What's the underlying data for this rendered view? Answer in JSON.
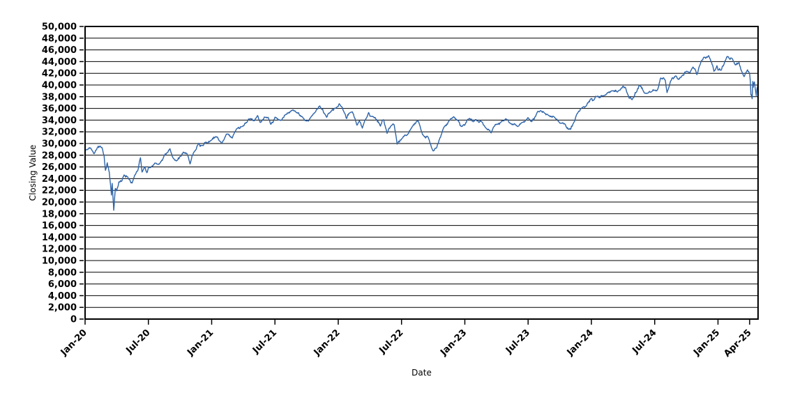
{
  "page": {
    "background": "#ffffff"
  },
  "chart_data": {
    "type": "line",
    "title": "",
    "xlabel": "Date",
    "ylabel": "Closing Value",
    "ylim": [
      0,
      50000
    ],
    "ytick_step": 2000,
    "grid": "horizontal-only",
    "legend": "none",
    "line_color": "#2d63a8",
    "x_unit": "months since Jan-20",
    "x_range": [
      0,
      63.8
    ],
    "xticks": [
      {
        "t": 0,
        "label": "Jan-20"
      },
      {
        "t": 6,
        "label": "Jul-20"
      },
      {
        "t": 12,
        "label": "Jan-21"
      },
      {
        "t": 18,
        "label": "Jul-21"
      },
      {
        "t": 24,
        "label": "Jan-22"
      },
      {
        "t": 30,
        "label": "Jul-22"
      },
      {
        "t": 36,
        "label": "Jan-23"
      },
      {
        "t": 42,
        "label": "Jul-23"
      },
      {
        "t": 48,
        "label": "Jan-24"
      },
      {
        "t": 54,
        "label": "Jul-24"
      },
      {
        "t": 60,
        "label": "Jan-25"
      },
      {
        "t": 63,
        "label": "Apr-25"
      }
    ],
    "series": [
      {
        "name": "Closing Value",
        "points": [
          [
            0,
            28869
          ],
          [
            0.4,
            29297
          ],
          [
            0.85,
            28256
          ],
          [
            1.15,
            29276
          ],
          [
            1.4,
            29551
          ],
          [
            1.62,
            29219
          ],
          [
            1.8,
            27961
          ],
          [
            1.93,
            25409
          ],
          [
            2.1,
            26703
          ],
          [
            2.3,
            25018
          ],
          [
            2.5,
            21200
          ],
          [
            2.57,
            23185
          ],
          [
            2.72,
            18592
          ],
          [
            2.8,
            20705
          ],
          [
            2.87,
            22327
          ],
          [
            3.0,
            21917
          ],
          [
            3.2,
            23434
          ],
          [
            3.45,
            23504
          ],
          [
            3.7,
            24634
          ],
          [
            4.0,
            24346
          ],
          [
            4.25,
            23765
          ],
          [
            4.45,
            23248
          ],
          [
            4.7,
            24576
          ],
          [
            5.0,
            25383
          ],
          [
            5.25,
            27572
          ],
          [
            5.4,
            25128
          ],
          [
            5.63,
            26025
          ],
          [
            5.85,
            25016
          ],
          [
            6.0,
            25813
          ],
          [
            6.3,
            26067
          ],
          [
            6.65,
            26652
          ],
          [
            7.0,
            26428
          ],
          [
            7.5,
            27931
          ],
          [
            8.05,
            29101
          ],
          [
            8.35,
            27501
          ],
          [
            8.75,
            27148
          ],
          [
            9.0,
            27782
          ],
          [
            9.35,
            28514
          ],
          [
            9.65,
            28308
          ],
          [
            9.95,
            26502
          ],
          [
            10.25,
            28309
          ],
          [
            10.78,
            30046
          ],
          [
            11.0,
            29639
          ],
          [
            11.4,
            30199
          ],
          [
            12.0,
            30606
          ],
          [
            12.4,
            31188
          ],
          [
            12.95,
            29983
          ],
          [
            13.4,
            31613
          ],
          [
            13.95,
            30932
          ],
          [
            14.35,
            32485
          ],
          [
            15.0,
            32982
          ],
          [
            15.5,
            34201
          ],
          [
            16.0,
            33875
          ],
          [
            16.35,
            34778
          ],
          [
            16.6,
            33587
          ],
          [
            17.0,
            34529
          ],
          [
            17.35,
            34480
          ],
          [
            17.6,
            33290
          ],
          [
            18.0,
            34503
          ],
          [
            18.6,
            33962
          ],
          [
            19.0,
            34935
          ],
          [
            19.55,
            35626
          ],
          [
            20.0,
            35361
          ],
          [
            20.55,
            34578
          ],
          [
            21.0,
            33844
          ],
          [
            21.35,
            34326
          ],
          [
            21.95,
            35820
          ],
          [
            22.25,
            36432
          ],
          [
            22.9,
            34484
          ],
          [
            23.25,
            35365
          ],
          [
            24.0,
            36338
          ],
          [
            24.1,
            36800
          ],
          [
            24.55,
            35369
          ],
          [
            24.8,
            34265
          ],
          [
            25.0,
            35132
          ],
          [
            25.35,
            35405
          ],
          [
            25.78,
            33131
          ],
          [
            26.0,
            33893
          ],
          [
            26.28,
            32632
          ],
          [
            26.88,
            35294
          ],
          [
            27.0,
            34678
          ],
          [
            27.5,
            34451
          ],
          [
            28.0,
            32977
          ],
          [
            28.3,
            34049
          ],
          [
            28.63,
            31730
          ],
          [
            29.0,
            32990
          ],
          [
            29.3,
            33213
          ],
          [
            29.58,
            29889
          ],
          [
            30.0,
            30775
          ],
          [
            30.5,
            31384
          ],
          [
            31.0,
            32845
          ],
          [
            31.55,
            33980
          ],
          [
            32.0,
            31510
          ],
          [
            32.5,
            31145
          ],
          [
            33.0,
            28726
          ],
          [
            33.3,
            29203
          ],
          [
            33.55,
            30524
          ],
          [
            34.0,
            32733
          ],
          [
            34.45,
            33748
          ],
          [
            34.95,
            34590
          ],
          [
            35.3,
            34005
          ],
          [
            35.65,
            32920
          ],
          [
            36.0,
            33147
          ],
          [
            36.45,
            34303
          ],
          [
            36.8,
            33717
          ],
          [
            37.0,
            34086
          ],
          [
            37.6,
            33697
          ],
          [
            38.0,
            32657
          ],
          [
            38.5,
            31819
          ],
          [
            38.75,
            32859
          ],
          [
            39.0,
            33274
          ],
          [
            39.5,
            33830
          ],
          [
            40.0,
            34098
          ],
          [
            40.35,
            33414
          ],
          [
            41.0,
            32908
          ],
          [
            41.4,
            33573
          ],
          [
            42.0,
            34408
          ],
          [
            42.35,
            33735
          ],
          [
            42.9,
            35459
          ],
          [
            43.2,
            35630
          ],
          [
            43.55,
            35215
          ],
          [
            44.0,
            34722
          ],
          [
            44.5,
            34475
          ],
          [
            45.0,
            33508
          ],
          [
            45.45,
            33415
          ],
          [
            45.88,
            32417
          ],
          [
            46.2,
            33053
          ],
          [
            46.6,
            34947
          ],
          [
            47.0,
            35951
          ],
          [
            47.5,
            36404
          ],
          [
            48.0,
            37690
          ],
          [
            48.25,
            37467
          ],
          [
            48.6,
            38109
          ],
          [
            49.0,
            38150
          ],
          [
            49.5,
            38627
          ],
          [
            50.0,
            38996
          ],
          [
            50.45,
            38790
          ],
          [
            51.0,
            39807
          ],
          [
            51.25,
            39475
          ],
          [
            51.58,
            37735
          ],
          [
            52.0,
            37816
          ],
          [
            52.3,
            38852
          ],
          [
            52.57,
            40003
          ],
          [
            53.0,
            38686
          ],
          [
            53.3,
            38589
          ],
          [
            53.65,
            38778
          ],
          [
            54.0,
            39119
          ],
          [
            54.3,
            39308
          ],
          [
            54.57,
            41198
          ],
          [
            55.0,
            40843
          ],
          [
            55.17,
            38703
          ],
          [
            55.5,
            40659
          ],
          [
            56.0,
            41563
          ],
          [
            56.25,
            40937
          ],
          [
            56.6,
            41606
          ],
          [
            57.0,
            42330
          ],
          [
            57.35,
            42080
          ],
          [
            57.62,
            43065
          ],
          [
            58.0,
            41763
          ],
          [
            58.35,
            43729
          ],
          [
            58.65,
            44736
          ],
          [
            59.12,
            45014
          ],
          [
            59.4,
            43828
          ],
          [
            59.62,
            42342
          ],
          [
            59.9,
            43297
          ],
          [
            60.0,
            42544
          ],
          [
            60.3,
            42518
          ],
          [
            60.65,
            44025
          ],
          [
            60.93,
            44882
          ],
          [
            61.05,
            44545
          ],
          [
            61.3,
            44593
          ],
          [
            61.65,
            43428
          ],
          [
            62.0,
            43841
          ],
          [
            62.2,
            42521
          ],
          [
            62.48,
            41433
          ],
          [
            62.8,
            42587
          ],
          [
            63.0,
            42002
          ],
          [
            63.07,
            40546
          ],
          [
            63.12,
            38315
          ],
          [
            63.2,
            37965
          ],
          [
            63.24,
            37646
          ],
          [
            63.3,
            40608
          ],
          [
            63.34,
            39593
          ],
          [
            63.38,
            40212
          ],
          [
            63.45,
            40525
          ],
          [
            63.63,
            38170
          ],
          [
            63.68,
            39187
          ],
          [
            63.73,
            39606
          ],
          [
            63.8,
            40113
          ]
        ]
      }
    ]
  }
}
